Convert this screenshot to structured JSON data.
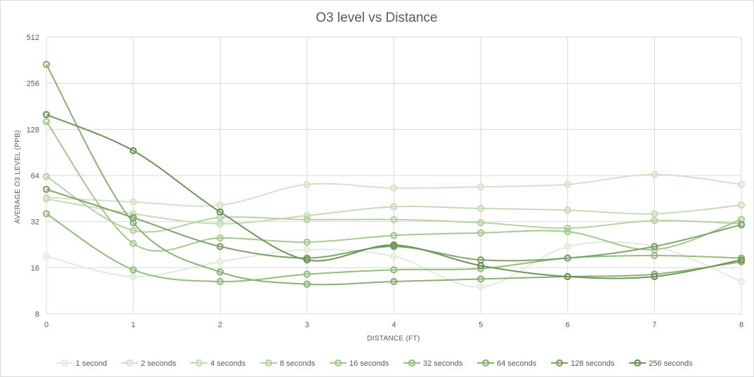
{
  "chart_data": {
    "type": "line",
    "title": "O3 level vs Distance",
    "xlabel": "DISTANCE (FT)",
    "ylabel": "AVERAGE O3 LEVEL (PPB)",
    "x": [
      0,
      1,
      2,
      3,
      4,
      5,
      6,
      7,
      8
    ],
    "xlim": [
      0,
      8
    ],
    "ylim": [
      8,
      512
    ],
    "y_scale": "log2",
    "y_ticks": [
      8,
      16,
      32,
      64,
      128,
      256,
      512
    ],
    "grid": true,
    "legend_position": "bottom",
    "smooth": true,
    "series": [
      {
        "name": "1 second",
        "color": "#e2ecdc",
        "values": [
          19,
          14,
          17.5,
          21,
          19,
          12,
          22,
          22,
          13
        ]
      },
      {
        "name": "2 seconds",
        "color": "#d3e3c9",
        "values": [
          46,
          43,
          41,
          56,
          53,
          54,
          56,
          65,
          56
        ]
      },
      {
        "name": "4 seconds",
        "color": "#c5dbb8",
        "values": [
          45,
          36,
          31,
          35,
          40,
          39,
          38,
          36,
          41
        ]
      },
      {
        "name": "8 seconds",
        "color": "#b5d2a3",
        "values": [
          63,
          28,
          34,
          33,
          33,
          31.5,
          29,
          32.5,
          31
        ]
      },
      {
        "name": "16 seconds",
        "color": "#a3c98d",
        "values": [
          144,
          23,
          25,
          23.5,
          26,
          27,
          27.5,
          21,
          33
        ]
      },
      {
        "name": "32 seconds",
        "color": "#93bd7a",
        "values": [
          36,
          15.5,
          13,
          14.5,
          15.5,
          15.8,
          18.5,
          19.2,
          18.5
        ]
      },
      {
        "name": "64 seconds",
        "color": "#88b172",
        "values": [
          340,
          31.5,
          15,
          12.5,
          13,
          13.5,
          14,
          14.5,
          17.5
        ]
      },
      {
        "name": "128 seconds",
        "color": "#7ea36a",
        "values": [
          52,
          34,
          22,
          18.5,
          22,
          18,
          18.5,
          22,
          30.5
        ]
      },
      {
        "name": "256 seconds",
        "color": "#6f9459",
        "values": [
          160,
          93,
          37,
          18,
          22.5,
          16.5,
          14,
          14,
          18
        ]
      }
    ]
  }
}
